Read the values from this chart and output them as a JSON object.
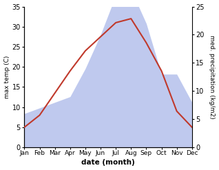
{
  "months": [
    "Jan",
    "Feb",
    "Mar",
    "Apr",
    "May",
    "Jun",
    "Jul",
    "Aug",
    "Sep",
    "Oct",
    "Nov",
    "Dec"
  ],
  "temperature": [
    5.0,
    8.0,
    13.5,
    19.0,
    24.0,
    27.5,
    31.0,
    32.0,
    26.0,
    19.0,
    9.0,
    5.0
  ],
  "precipitation": [
    6.0,
    7.0,
    8.0,
    9.0,
    14.0,
    20.0,
    27.0,
    28.0,
    22.0,
    13.0,
    13.0,
    8.0
  ],
  "temp_ylim": [
    0,
    35
  ],
  "precip_ylim": [
    0,
    25
  ],
  "temp_color": "#c0392b",
  "precip_color": "#b8c4ed",
  "xlabel": "date (month)",
  "ylabel_left": "max temp (C)",
  "ylabel_right": "med. precipitation (kg/m2)",
  "temp_yticks": [
    0,
    5,
    10,
    15,
    20,
    25,
    30,
    35
  ],
  "precip_yticks": [
    0,
    5,
    10,
    15,
    20,
    25
  ],
  "figsize": [
    3.18,
    2.47
  ],
  "dpi": 100
}
